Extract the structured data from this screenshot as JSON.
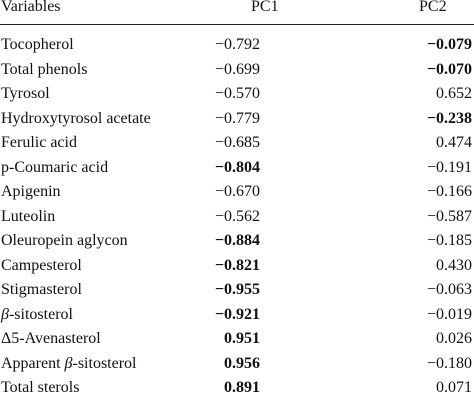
{
  "table": {
    "headers": {
      "variables": "Variables",
      "pc1": "PC1",
      "pc2": "PC2"
    },
    "rows": [
      {
        "variable": "Tocopherol",
        "pc1": "−0.792",
        "pc1_bold": false,
        "pc2": "−0.079",
        "pc2_bold": true
      },
      {
        "variable": "Total phenols",
        "pc1": "−0.699",
        "pc1_bold": false,
        "pc2": "−0.070",
        "pc2_bold": true
      },
      {
        "variable": "Tyrosol",
        "pc1": "−0.570",
        "pc1_bold": false,
        "pc2": "0.652",
        "pc2_bold": false
      },
      {
        "variable": "Hydroxytyrosol acetate",
        "pc1": "−0.779",
        "pc1_bold": false,
        "pc2": "−0.238",
        "pc2_bold": true
      },
      {
        "variable": "Ferulic acid",
        "pc1": "−0.685",
        "pc1_bold": false,
        "pc2": "0.474",
        "pc2_bold": false
      },
      {
        "variable": "p-Coumaric acid",
        "pc1": "−0.804",
        "pc1_bold": true,
        "pc2": "−0.191",
        "pc2_bold": false
      },
      {
        "variable": "Apigenin",
        "pc1": "−0.670",
        "pc1_bold": false,
        "pc2": "−0.166",
        "pc2_bold": false
      },
      {
        "variable": "Luteolin",
        "pc1": "−0.562",
        "pc1_bold": false,
        "pc2": "−0.587",
        "pc2_bold": false
      },
      {
        "variable": "Oleuropein aglycon",
        "pc1": "−0.884",
        "pc1_bold": true,
        "pc2": "−0.185",
        "pc2_bold": false
      },
      {
        "variable": "Campesterol",
        "pc1": "−0.821",
        "pc1_bold": true,
        "pc2": "0.430",
        "pc2_bold": false
      },
      {
        "variable": "Stigmasterol",
        "pc1": "−0.955",
        "pc1_bold": true,
        "pc2": "−0.063",
        "pc2_bold": false
      },
      {
        "variable_prefix": "β",
        "variable": "-sitosterol",
        "pc1": "−0.921",
        "pc1_bold": true,
        "pc2": "−0.019",
        "pc2_bold": false
      },
      {
        "variable": "Δ5-Avenasterol",
        "pc1": "0.951",
        "pc1_bold": true,
        "pc2": "0.026",
        "pc2_bold": false
      },
      {
        "variable": "Apparent ",
        "variable_prefix": "β",
        "variable_suffix": "-sitosterol",
        "pc1": "0.956",
        "pc1_bold": true,
        "pc2": "−0.180",
        "pc2_bold": false
      },
      {
        "variable": "Total sterols",
        "pc1": "0.891",
        "pc1_bold": true,
        "pc2": "0.071",
        "pc2_bold": false
      }
    ]
  }
}
